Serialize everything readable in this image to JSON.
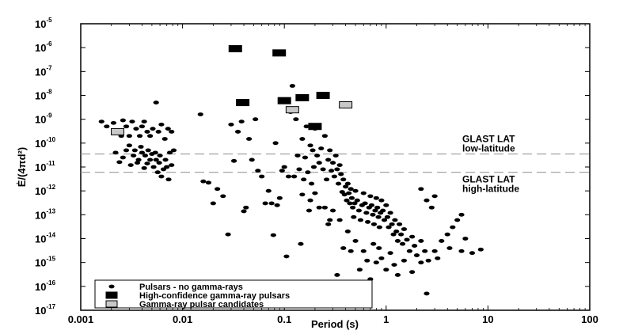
{
  "chart_data": {
    "type": "scatter",
    "xlabel": "Period (s)",
    "ylabel": "Ė/(4πd²)",
    "xscale": "log",
    "yscale": "log",
    "xlim": [
      0.001,
      100
    ],
    "ylim": [
      1e-17,
      1e-05
    ],
    "x_ticks": [
      {
        "value": 0.001,
        "label": "0.001"
      },
      {
        "value": 0.01,
        "label": "0.01"
      },
      {
        "value": 0.1,
        "label": "0.1"
      },
      {
        "value": 1,
        "label": "1"
      },
      {
        "value": 10,
        "label": "10"
      },
      {
        "value": 100,
        "label": "100"
      }
    ],
    "y_ticks": [
      {
        "value": 1e-05,
        "base": "10",
        "exp": "-5"
      },
      {
        "value": 1e-06,
        "base": "10",
        "exp": "-6"
      },
      {
        "value": 1e-07,
        "base": "10",
        "exp": "-7"
      },
      {
        "value": 1e-08,
        "base": "10",
        "exp": "-8"
      },
      {
        "value": 1e-09,
        "base": "10",
        "exp": "-9"
      },
      {
        "value": 1e-10,
        "base": "10",
        "exp": "-10"
      },
      {
        "value": 1e-11,
        "base": "10",
        "exp": "-11"
      },
      {
        "value": 1e-12,
        "base": "10",
        "exp": "-12"
      },
      {
        "value": 1e-13,
        "base": "10",
        "exp": "-13"
      },
      {
        "value": 1e-14,
        "base": "10",
        "exp": "-14"
      },
      {
        "value": 1e-15,
        "base": "10",
        "exp": "-15"
      },
      {
        "value": 1e-16,
        "base": "10",
        "exp": "-16"
      },
      {
        "value": 1e-17,
        "base": "10",
        "exp": "-17"
      }
    ],
    "grid": false,
    "legend_position": "bottom-left",
    "reference_lines": [
      {
        "y": 3.5e-11,
        "label_line1": "GLAST LAT",
        "label_line2": "low-latitude",
        "style": "dashed",
        "color": "#999999"
      },
      {
        "y": 6e-12,
        "label_line1": "GLAST LAT",
        "label_line2": "high-latitude",
        "style": "dashed",
        "color": "#999999"
      }
    ],
    "series": [
      {
        "name": "Pulsars - no gamma-rays",
        "marker": "ellipse",
        "color": "#000000",
        "points": [
          [
            0.0016,
            8e-10
          ],
          [
            0.0018,
            5e-10
          ],
          [
            0.0021,
            7e-10
          ],
          [
            0.0023,
            3e-10
          ],
          [
            0.0025,
            2e-10
          ],
          [
            0.0026,
            9e-10
          ],
          [
            0.0028,
            5e-10
          ],
          [
            0.003,
            2e-10
          ],
          [
            0.0032,
            8e-10
          ],
          [
            0.0035,
            4e-10
          ],
          [
            0.0038,
            2e-10
          ],
          [
            0.004,
            5e-10
          ],
          [
            0.0042,
            8e-10
          ],
          [
            0.0045,
            3e-10
          ],
          [
            0.0048,
            2e-10
          ],
          [
            0.0051,
            4e-10
          ],
          [
            0.0055,
            5e-09
          ],
          [
            0.0058,
            3e-10
          ],
          [
            0.0062,
            6e-10
          ],
          [
            0.0067,
            1.5e-10
          ],
          [
            0.0072,
            4e-10
          ],
          [
            0.0078,
            3e-10
          ],
          [
            0.0022,
            4e-11
          ],
          [
            0.0024,
            1.6e-11
          ],
          [
            0.0026,
            2.5e-11
          ],
          [
            0.0028,
            5e-11
          ],
          [
            0.003,
            8e-11
          ],
          [
            0.0031,
            1.2e-11
          ],
          [
            0.0033,
            3e-11
          ],
          [
            0.0034,
            5e-11
          ],
          [
            0.0036,
            1.5e-11
          ],
          [
            0.0037,
            2e-11
          ],
          [
            0.0039,
            7e-11
          ],
          [
            0.004,
            4e-11
          ],
          [
            0.0042,
            9e-12
          ],
          [
            0.0043,
            3e-11
          ],
          [
            0.0045,
            1.4e-11
          ],
          [
            0.0046,
            5e-11
          ],
          [
            0.0048,
            2e-11
          ],
          [
            0.005,
            3.5e-11
          ],
          [
            0.0052,
            1e-11
          ],
          [
            0.0054,
            4e-11
          ],
          [
            0.0055,
            2e-11
          ],
          [
            0.0057,
            6e-12
          ],
          [
            0.0059,
            1.5e-11
          ],
          [
            0.006,
            3e-11
          ],
          [
            0.0062,
            4e-12
          ],
          [
            0.0065,
            8e-12
          ],
          [
            0.0068,
            2e-11
          ],
          [
            0.007,
            1e-11
          ],
          [
            0.0073,
            3e-12
          ],
          [
            0.0075,
            4e-11
          ],
          [
            0.0078,
            1.2e-11
          ],
          [
            0.0082,
            5e-11
          ],
          [
            0.015,
            1.6e-09
          ],
          [
            0.016,
            2.5e-12
          ],
          [
            0.018,
            2.2e-12
          ],
          [
            0.02,
            3e-13
          ],
          [
            0.022,
            1.2e-12
          ],
          [
            0.025,
            6e-13
          ],
          [
            0.028,
            1.5e-14
          ],
          [
            0.03,
            6e-10
          ],
          [
            0.032,
            1.8e-11
          ],
          [
            0.035,
            3e-10
          ],
          [
            0.038,
            8e-10
          ],
          [
            0.04,
            1.4e-13
          ],
          [
            0.042,
            2e-13
          ],
          [
            0.045,
            1.5e-10
          ],
          [
            0.048,
            2e-11
          ],
          [
            0.052,
            1e-09
          ],
          [
            0.055,
            7e-12
          ],
          [
            0.06,
            4e-12
          ],
          [
            0.065,
            3e-13
          ],
          [
            0.07,
            1e-12
          ],
          [
            0.075,
            3e-13
          ],
          [
            0.078,
            1.4e-14
          ],
          [
            0.082,
            1e-10
          ],
          [
            0.085,
            2.5e-13
          ],
          [
            0.09,
            5e-13
          ],
          [
            0.095,
            7e-12
          ],
          [
            0.1,
            1e-11
          ],
          [
            0.105,
            1.8e-15
          ],
          [
            0.11,
            4e-12
          ],
          [
            0.115,
            2e-09
          ],
          [
            0.12,
            2.5e-08
          ],
          [
            0.125,
            4e-12
          ],
          [
            0.13,
            1e-09
          ],
          [
            0.135,
            3e-11
          ],
          [
            0.14,
            8e-12
          ],
          [
            0.145,
            6e-15
          ],
          [
            0.15,
            1.5e-10
          ],
          [
            0.155,
            3e-12
          ],
          [
            0.16,
            2.5e-11
          ],
          [
            0.165,
            5e-10
          ],
          [
            0.17,
            6e-12
          ],
          [
            0.175,
            1.5e-13
          ],
          [
            0.18,
            8e-11
          ],
          [
            0.185,
            2e-12
          ],
          [
            0.19,
            5e-11
          ],
          [
            0.195,
            1e-11
          ],
          [
            0.2,
            4e-10
          ],
          [
            0.21,
            3e-11
          ],
          [
            0.22,
            1.5e-11
          ],
          [
            0.23,
            6e-11
          ],
          [
            0.24,
            8e-12
          ],
          [
            0.25,
            2e-10
          ],
          [
            0.26,
            3e-12
          ],
          [
            0.27,
            2e-11
          ],
          [
            0.28,
            5e-11
          ],
          [
            0.29,
            7e-12
          ],
          [
            0.3,
            1.5e-11
          ],
          [
            0.31,
            4e-12
          ],
          [
            0.32,
            3e-11
          ],
          [
            0.33,
            8e-12
          ],
          [
            0.34,
            2e-12
          ],
          [
            0.35,
            1.2e-11
          ],
          [
            0.36,
            5e-12
          ],
          [
            0.37,
            9e-13
          ],
          [
            0.38,
            3e-12
          ],
          [
            0.39,
            7e-13
          ],
          [
            0.4,
            1.5e-12
          ],
          [
            0.41,
            4e-13
          ],
          [
            0.42,
            2e-12
          ],
          [
            0.43,
            8e-13
          ],
          [
            0.44,
            3e-13
          ],
          [
            0.45,
            1.2e-12
          ],
          [
            0.46,
            5e-13
          ],
          [
            0.47,
            2e-13
          ],
          [
            0.48,
            8e-14
          ],
          [
            0.49,
            3e-13
          ],
          [
            0.5,
            1e-12
          ],
          [
            0.52,
            4e-13
          ],
          [
            0.54,
            1.5e-13
          ],
          [
            0.56,
            6e-14
          ],
          [
            0.58,
            2.5e-13
          ],
          [
            0.6,
            8e-13
          ],
          [
            0.62,
            3e-13
          ],
          [
            0.64,
            1.2e-13
          ],
          [
            0.66,
            5e-14
          ],
          [
            0.68,
            2e-13
          ],
          [
            0.7,
            6e-13
          ],
          [
            0.72,
            2.5e-13
          ],
          [
            0.74,
            1e-13
          ],
          [
            0.76,
            4e-14
          ],
          [
            0.78,
            1.5e-13
          ],
          [
            0.8,
            5e-13
          ],
          [
            0.82,
            2e-13
          ],
          [
            0.84,
            8e-14
          ],
          [
            0.86,
            3e-14
          ],
          [
            0.88,
            1.2e-13
          ],
          [
            0.9,
            4e-13
          ],
          [
            0.93,
            1.5e-13
          ],
          [
            0.96,
            6e-14
          ],
          [
            1.0,
            2.5e-13
          ],
          [
            1.03,
            8e-14
          ],
          [
            1.06,
            3e-14
          ],
          [
            1.1,
            1.2e-13
          ],
          [
            1.14,
            4e-14
          ],
          [
            1.18,
            1.5e-14
          ],
          [
            1.22,
            6e-14
          ],
          [
            1.26,
            2e-14
          ],
          [
            1.3,
            8e-15
          ],
          [
            1.35,
            4e-14
          ],
          [
            1.4,
            1.5e-14
          ],
          [
            1.45,
            6e-15
          ],
          [
            1.5,
            2.5e-14
          ],
          [
            1.6,
            9e-15
          ],
          [
            1.7,
            3e-15
          ],
          [
            1.8,
            1.2e-14
          ],
          [
            1.9,
            5e-15
          ],
          [
            2.0,
            2e-15
          ],
          [
            2.2,
            8e-15
          ],
          [
            2.4,
            3e-15
          ],
          [
            2.6,
            1.2e-15
          ],
          [
            0.35,
            6e-14
          ],
          [
            0.38,
            4e-15
          ],
          [
            0.42,
            2e-14
          ],
          [
            0.45,
            3e-15
          ],
          [
            0.5,
            8e-15
          ],
          [
            0.55,
            5e-16
          ],
          [
            0.6,
            3e-15
          ],
          [
            0.65,
            1.2e-15
          ],
          [
            0.7,
            2e-16
          ],
          [
            0.75,
            6e-15
          ],
          [
            0.8,
            1e-15
          ],
          [
            0.85,
            4e-15
          ],
          [
            0.9,
            1.5e-15
          ],
          [
            1.0,
            5e-16
          ],
          [
            1.1,
            2.5e-15
          ],
          [
            1.2,
            8e-16
          ],
          [
            1.3,
            3e-16
          ],
          [
            1.5,
            1.2e-15
          ],
          [
            1.8,
            4e-16
          ],
          [
            2.2,
            1e-15
          ],
          [
            2.5,
            5e-17
          ],
          [
            3.0,
            3e-15
          ],
          [
            3.5,
            8e-15
          ],
          [
            4.0,
            1.5e-14
          ],
          [
            4.5,
            3e-14
          ],
          [
            5.0,
            6e-14
          ],
          [
            5.5,
            1e-13
          ],
          [
            4.2,
            4e-15
          ],
          [
            5.5,
            3e-15
          ],
          [
            6.0,
            1e-14
          ],
          [
            7.0,
            2.5e-15
          ],
          [
            8.5,
            3.5e-15
          ],
          [
            3.2,
            1.5e-15
          ],
          [
            2.8,
            2e-13
          ],
          [
            3.0,
            6e-13
          ],
          [
            2.5,
            4e-13
          ],
          [
            2.2,
            1.2e-12
          ],
          [
            0.25,
            2e-13
          ],
          [
            0.28,
            6e-14
          ],
          [
            0.3,
            1.5e-13
          ],
          [
            0.27,
            4e-14
          ],
          [
            0.2,
            8e-13
          ],
          [
            0.22,
            2e-13
          ],
          [
            0.18,
            4e-13
          ],
          [
            0.15,
            7e-13
          ],
          [
            0.33,
            3e-16
          ],
          [
            0.28,
            1.5e-16
          ]
        ]
      },
      {
        "name": "High-confidence gamma-ray pulsars",
        "marker": "square",
        "color": "#000000",
        "points": [
          [
            0.033,
            9e-07
          ],
          [
            0.089,
            6e-07
          ],
          [
            0.039,
            5e-09
          ],
          [
            0.1,
            6e-09
          ],
          [
            0.15,
            8e-09
          ],
          [
            0.24,
            1e-08
          ],
          [
            0.2,
            5e-10
          ]
        ]
      },
      {
        "name": "Gamma-ray pulsar candidates",
        "marker": "square",
        "color": "#c8c8c8",
        "points": [
          [
            0.0023,
            3e-10
          ],
          [
            0.12,
            2.5e-09
          ],
          [
            0.4,
            4e-09
          ]
        ]
      }
    ]
  }
}
